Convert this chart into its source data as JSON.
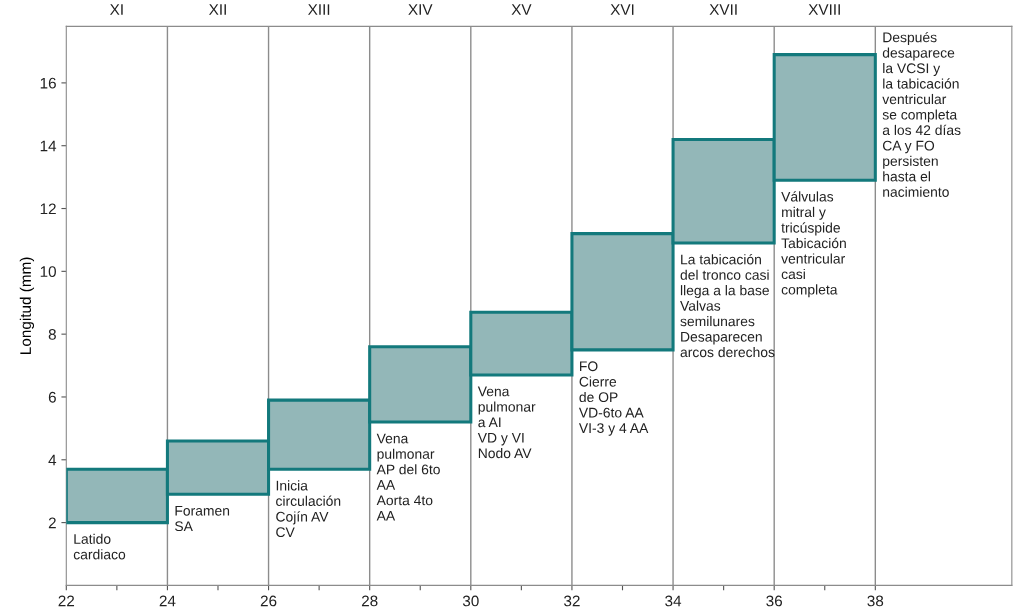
{
  "chart_data": {
    "type": "bar",
    "ylabel": "Longitud (mm)",
    "x": [
      23,
      25,
      27,
      29,
      31,
      33,
      35,
      37
    ],
    "base": [
      2.0,
      2.9,
      3.7,
      5.2,
      6.7,
      7.5,
      10.9,
      12.9
    ],
    "values": [
      1.7,
      1.7,
      2.2,
      2.4,
      2.0,
      3.7,
      3.3,
      4.0
    ],
    "color": "#93b7b8",
    "xlim": [
      22,
      40.7
    ],
    "xticks": [
      22,
      {
        "value": 23,
        "label": null
      },
      24,
      {
        "value": 25,
        "label": null
      },
      26,
      {
        "value": 27,
        "label": null
      },
      28,
      {
        "value": 29,
        "label": null
      },
      30,
      {
        "value": 31,
        "label": null
      },
      32,
      {
        "value": 33,
        "label": null
      },
      34,
      {
        "value": 35,
        "label": null
      },
      36,
      {
        "value": 37,
        "label": null
      },
      38
    ],
    "ylim": [
      0,
      17.8
    ],
    "yticks": [
      2,
      4,
      6,
      8,
      10,
      12,
      14,
      16
    ],
    "ref_lines": [
      {
        "axis": "x",
        "value": 24,
        "color": "#8c8c8c"
      },
      {
        "axis": "x",
        "value": 26,
        "color": "#8c8c8c"
      },
      {
        "axis": "x",
        "value": 28,
        "color": "#8c8c8c"
      },
      {
        "axis": "x",
        "value": 30,
        "color": "#8c8c8c"
      },
      {
        "axis": "x",
        "value": 32,
        "color": "#8c8c8c"
      },
      {
        "axis": "x",
        "value": 34,
        "color": "#8c8c8c"
      },
      {
        "axis": "x",
        "value": 36,
        "color": "#8c8c8c"
      },
      {
        "axis": "x",
        "value": 38,
        "color": "#8c8c8c"
      }
    ],
    "annotations": [
      "XI",
      "XII",
      "XIII",
      "XIV",
      "XV",
      "XVI",
      "XVII",
      "XVIII",
      {
        "text": "Latido\ncardiaco",
        "x": 22,
        "y": 2.0
      },
      {
        "text": "Foramen\nSA",
        "x": 24,
        "y": 2.9
      },
      {
        "text": "Inicia\ncirculación\nCojín AV\nCV",
        "x": 26,
        "y": 3.7
      },
      {
        "text": "Vena\npulmonar\nAP del 6to\nAA\nAorta 4to\nAA",
        "x": 28,
        "y": 5.2
      },
      {
        "text": "Vena\npulmonar\na AI\nVD y VI\nNodo AV",
        "x": 30,
        "y": 6.7
      },
      {
        "text": "FO\nCierre\nde OP\nVD-6to AA\nVI-3 y 4 AA",
        "x": 32,
        "y": 7.5
      },
      {
        "text": "La tabicación\ndel tronco casi\nllega a la base\nValvas\nsemilunares\nDesaparecen\narcos derechos",
        "x": 34,
        "y": 10.9
      },
      {
        "text": "Válvulas\nmitral y\ntricúspide\nTabicación\nventricular\ncasi\ncompleta",
        "x": 36,
        "y": 12.9
      },
      "Después\ndesaparece\nla VCSI y\nla tabicación\nventricular\nse completa\na los 42 días\nCA y FO\npersisten\nhasta el\nnacimiento"
    ]
  }
}
